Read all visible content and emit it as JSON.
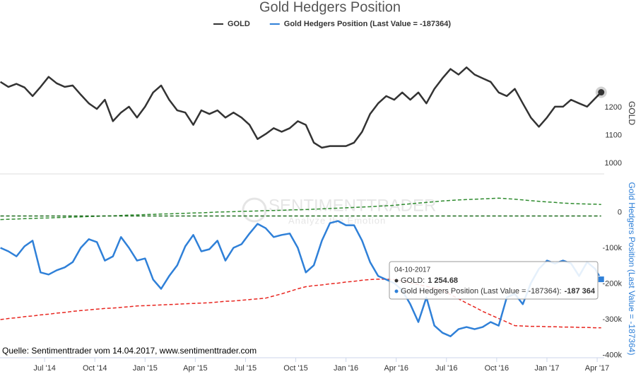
{
  "chart_data": [
    {
      "type": "line",
      "title": "Gold Hedgers Position",
      "y_label": "GOLD",
      "x": [
        2014.28,
        2014.32,
        2014.36,
        2014.4,
        2014.44,
        2014.48,
        2014.52,
        2014.56,
        2014.6,
        2014.64,
        2014.68,
        2014.72,
        2014.76,
        2014.8,
        2014.84,
        2014.88,
        2014.92,
        2014.96,
        2015.0,
        2015.04,
        2015.08,
        2015.12,
        2015.16,
        2015.2,
        2015.24,
        2015.28,
        2015.32,
        2015.36,
        2015.4,
        2015.44,
        2015.48,
        2015.52,
        2015.56,
        2015.6,
        2015.64,
        2015.68,
        2015.72,
        2015.76,
        2015.8,
        2015.84,
        2015.88,
        2015.92,
        2015.96,
        2016.0,
        2016.04,
        2016.08,
        2016.12,
        2016.16,
        2016.2,
        2016.24,
        2016.28,
        2016.32,
        2016.36,
        2016.4,
        2016.44,
        2016.48,
        2016.52,
        2016.56,
        2016.6,
        2016.64,
        2016.68,
        2016.72,
        2016.76,
        2016.8,
        2016.84,
        2016.88,
        2016.92,
        2016.96,
        2017.0,
        2017.04,
        2017.08,
        2017.12,
        2017.16,
        2017.2,
        2017.24,
        2017.27
      ],
      "xlim": [
        2014.278,
        2017.285
      ],
      "ylim": [
        990,
        1370
      ],
      "yticks": [
        1000,
        1100,
        1200
      ],
      "series": [
        {
          "name": "GOLD",
          "color": "#333333",
          "values": [
            1292,
            1274,
            1285,
            1272,
            1241,
            1274,
            1310,
            1287,
            1274,
            1279,
            1246,
            1215,
            1195,
            1228,
            1151,
            1182,
            1203,
            1164,
            1203,
            1254,
            1279,
            1228,
            1190,
            1182,
            1138,
            1190,
            1177,
            1190,
            1164,
            1182,
            1164,
            1138,
            1087,
            1105,
            1126,
            1113,
            1126,
            1151,
            1138,
            1074,
            1056,
            1062,
            1062,
            1062,
            1074,
            1113,
            1177,
            1215,
            1241,
            1228,
            1254,
            1228,
            1254,
            1215,
            1267,
            1305,
            1338,
            1318,
            1344,
            1318,
            1305,
            1292,
            1254,
            1241,
            1267,
            1215,
            1164,
            1131,
            1164,
            1203,
            1203,
            1228,
            1215,
            1203,
            1233,
            1254.68
          ]
        }
      ]
    },
    {
      "type": "line",
      "y_label": "Gold Hedgers Position (Last Value = -187364)",
      "x": [
        2014.28,
        2014.32,
        2014.36,
        2014.4,
        2014.44,
        2014.48,
        2014.52,
        2014.56,
        2014.6,
        2014.64,
        2014.68,
        2014.72,
        2014.76,
        2014.8,
        2014.84,
        2014.88,
        2014.92,
        2014.96,
        2015.0,
        2015.04,
        2015.08,
        2015.12,
        2015.16,
        2015.2,
        2015.24,
        2015.28,
        2015.32,
        2015.36,
        2015.4,
        2015.44,
        2015.48,
        2015.52,
        2015.56,
        2015.6,
        2015.64,
        2015.68,
        2015.72,
        2015.76,
        2015.8,
        2015.84,
        2015.88,
        2015.92,
        2015.96,
        2016.0,
        2016.04,
        2016.08,
        2016.12,
        2016.16,
        2016.2,
        2016.24,
        2016.28,
        2016.32,
        2016.36,
        2016.4,
        2016.44,
        2016.48,
        2016.52,
        2016.56,
        2016.6,
        2016.64,
        2016.68,
        2016.72,
        2016.76,
        2016.8,
        2016.84,
        2016.88,
        2016.92,
        2016.96,
        2017.0,
        2017.04,
        2017.08,
        2017.12,
        2017.16,
        2017.2,
        2017.24,
        2017.27
      ],
      "xlim": [
        2014.278,
        2017.285
      ],
      "xticks": [
        {
          "value": 2014.5,
          "label": "Jul '14"
        },
        {
          "value": 2014.75,
          "label": "Oct '14"
        },
        {
          "value": 2015.0,
          "label": "Jan '15"
        },
        {
          "value": 2015.25,
          "label": "Apr '15"
        },
        {
          "value": 2015.5,
          "label": "Jul '15"
        },
        {
          "value": 2015.75,
          "label": "Oct '15"
        },
        {
          "value": 2016.0,
          "label": "Jan '16"
        },
        {
          "value": 2016.25,
          "label": "Apr '16"
        },
        {
          "value": 2016.5,
          "label": "Jul '16"
        },
        {
          "value": 2016.75,
          "label": "Oct '16"
        },
        {
          "value": 2017.0,
          "label": "Jan '17"
        },
        {
          "value": 2017.25,
          "label": "Apr '17"
        }
      ],
      "ylim": [
        -405000,
        90000
      ],
      "yticks": [
        0,
        {
          "value": -100000,
          "label": "-100k"
        },
        {
          "value": -200000,
          "label": "-200k"
        },
        {
          "value": -300000,
          "label": "-300k"
        },
        {
          "value": -400000,
          "label": "-400k"
        }
      ],
      "series": [
        {
          "color": "#2e8b2e",
          "dashed": true,
          "values": [
            -20000,
            -19000,
            -18500,
            -17500,
            -17000,
            -16000,
            -15500,
            -14500,
            -14000,
            -13000,
            -12500,
            -11500,
            -11000,
            -10000,
            -9500,
            -8500,
            -7500,
            -7000,
            -6000,
            -5500,
            -4500,
            -4000,
            -3000,
            -2500,
            -1500,
            -1000,
            0,
            1000,
            1500,
            2000,
            3000,
            3500,
            4000,
            5000,
            5500,
            6000,
            7000,
            7500,
            8000,
            9000,
            10000,
            11000,
            12000,
            13000,
            14000,
            15000,
            16000,
            17500,
            18500,
            20000,
            22000,
            24000,
            26000,
            28000,
            30000,
            32000,
            33500,
            35000,
            36000,
            37000,
            38000,
            39000,
            40000,
            38500,
            37000,
            35000,
            33000,
            31000,
            29500,
            28000,
            26000,
            25000,
            24000,
            23500,
            23000,
            22000
          ]
        },
        {
          "color": "#1e6b1e",
          "dashed": true,
          "values": [
            -10000,
            -10000,
            -10000,
            -10000,
            -10000,
            -10000,
            -10000,
            -10000,
            -10000,
            -10000,
            -10000,
            -10000,
            -10000,
            -10000,
            -10000,
            -10000,
            -10000,
            -10000,
            -10000,
            -10000,
            -10000,
            -10000,
            -10000,
            -10000,
            -10000,
            -10000,
            -10000,
            -10000,
            -10000,
            -10000,
            -10000,
            -10000,
            -10000,
            -10000,
            -10000,
            -10000,
            -10000,
            -10000,
            -10000,
            -10000,
            -10000,
            -10000,
            -10000,
            -10000,
            -10000,
            -10000,
            -10000,
            -10000,
            -10000,
            -10000,
            -10000,
            -10000,
            -10000,
            -10000,
            -10000,
            -10000,
            -10000,
            -10000,
            -10000,
            -10000,
            -10000,
            -10000,
            -10000,
            -10000,
            -10000,
            -10000,
            -10000,
            -10000,
            -10000,
            -10000,
            -10000,
            -10000,
            -10000,
            -10000,
            -10000,
            -10000
          ]
        },
        {
          "color": "#e8251f",
          "dashed": true,
          "values": [
            -300000,
            -297000,
            -295000,
            -292000,
            -290000,
            -287000,
            -285000,
            -282000,
            -280000,
            -277000,
            -275000,
            -273000,
            -271000,
            -269000,
            -268000,
            -266000,
            -264000,
            -262000,
            -261000,
            -260000,
            -259000,
            -258000,
            -257000,
            -256000,
            -255000,
            -254000,
            -253000,
            -251000,
            -249000,
            -248000,
            -246000,
            -244000,
            -242000,
            -240000,
            -234000,
            -228000,
            -221000,
            -214000,
            -208000,
            -205000,
            -203000,
            -200000,
            -198000,
            -195000,
            -193000,
            -190000,
            -188000,
            -187000,
            -187000,
            -188000,
            -192000,
            -197000,
            -202000,
            -207000,
            -212000,
            -218000,
            -230000,
            -242000,
            -254000,
            -265000,
            -277000,
            -287000,
            -297000,
            -307000,
            -317000,
            -318000,
            -319000,
            -319000,
            -320000,
            -320000,
            -321000,
            -321000,
            -322000,
            -322000,
            -323000,
            -323000
          ]
        },
        {
          "name": "Gold Hedgers Position (Last Value = -187364)",
          "color": "#2f80d8",
          "values": [
            -99000,
            -109000,
            -123000,
            -95000,
            -79000,
            -168000,
            -174000,
            -162000,
            -154000,
            -139000,
            -99000,
            -75000,
            -83000,
            -135000,
            -123000,
            -69000,
            -99000,
            -135000,
            -129000,
            -188000,
            -214000,
            -178000,
            -148000,
            -95000,
            -63000,
            -109000,
            -103000,
            -79000,
            -135000,
            -99000,
            -89000,
            -59000,
            -32000,
            -44000,
            -69000,
            -63000,
            -59000,
            -99000,
            -168000,
            -148000,
            -79000,
            -30000,
            -24000,
            -36000,
            -36000,
            -79000,
            -139000,
            -178000,
            -188000,
            -198000,
            -218000,
            -257000,
            -307000,
            -238000,
            -317000,
            -337000,
            -347000,
            -327000,
            -321000,
            -327000,
            -321000,
            -307000,
            -317000,
            -238000,
            -228000,
            -257000,
            -198000,
            -158000,
            -135000,
            -143000,
            -135000,
            -143000,
            -178000,
            -139000,
            -158000,
            -187364
          ]
        }
      ]
    }
  ],
  "watermark": {
    "brand": "SENTIMENTTRADER",
    "tagline": "Analyze the Emotion"
  },
  "source": "Quelle: Sentimenttrader vom 14.04.2017, www.sentimenttrader.com",
  "tooltip": {
    "date": "04-10-2017",
    "rows": [
      {
        "label": "GOLD:",
        "value": "1 254.68"
      },
      {
        "label": "Gold Hedgers Position (Last Value = -187364):",
        "value": "-187 364"
      }
    ]
  }
}
